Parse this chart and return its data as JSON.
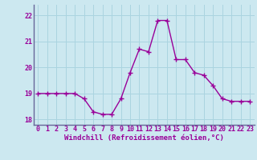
{
  "x": [
    0,
    1,
    2,
    3,
    4,
    5,
    6,
    7,
    8,
    9,
    10,
    11,
    12,
    13,
    14,
    15,
    16,
    17,
    18,
    19,
    20,
    21,
    22,
    23
  ],
  "y": [
    19.0,
    19.0,
    19.0,
    19.0,
    19.0,
    18.8,
    18.3,
    18.2,
    18.2,
    18.8,
    19.8,
    20.7,
    20.6,
    21.8,
    21.8,
    20.3,
    20.3,
    19.8,
    19.7,
    19.3,
    18.8,
    18.7,
    18.7,
    18.7
  ],
  "line_color": "#990099",
  "marker": "+",
  "bg_color": "#cce8f0",
  "grid_color": "#aad4e0",
  "xlabel": "Windchill (Refroidissement éolien,°C)",
  "xlabel_color": "#990099",
  "tick_color": "#990099",
  "axis_color": "#666699",
  "ylim": [
    17.8,
    22.4
  ],
  "xlim": [
    -0.5,
    23.5
  ],
  "yticks": [
    18,
    19,
    20,
    21,
    22
  ],
  "xticks": [
    0,
    1,
    2,
    3,
    4,
    5,
    6,
    7,
    8,
    9,
    10,
    11,
    12,
    13,
    14,
    15,
    16,
    17,
    18,
    19,
    20,
    21,
    22,
    23
  ],
  "xtick_labels": [
    "0",
    "1",
    "2",
    "3",
    "4",
    "5",
    "6",
    "7",
    "8",
    "9",
    "10",
    "11",
    "12",
    "13",
    "14",
    "15",
    "16",
    "17",
    "18",
    "19",
    "20",
    "21",
    "22",
    "23"
  ],
  "ytick_labels": [
    "18",
    "19",
    "20",
    "21",
    "22"
  ],
  "tick_fontsize": 6.0,
  "xlabel_fontsize": 6.5,
  "linewidth": 1.0,
  "markersize": 4,
  "markeredgewidth": 1.0
}
